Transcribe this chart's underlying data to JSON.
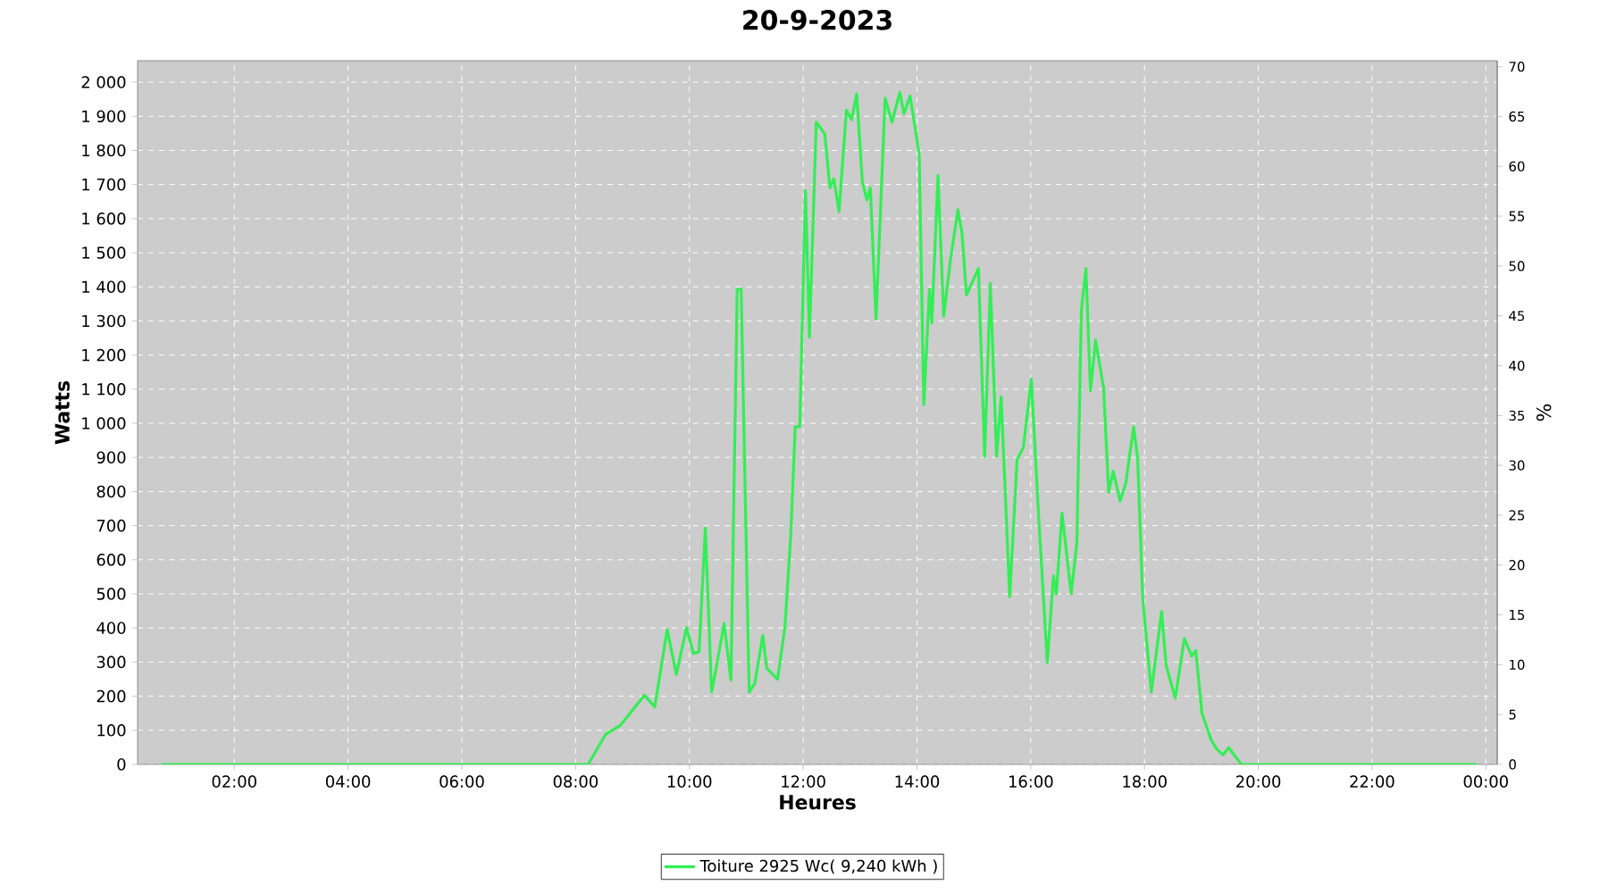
{
  "chart_data": {
    "type": "line",
    "title": "20-9-2023",
    "xlabel": "Heures",
    "ylabel": "Watts",
    "y2label": "%",
    "xlim": [
      0.3,
      24.2
    ],
    "xticks": [
      {
        "value": 2,
        "label": "02:00"
      },
      {
        "value": 4,
        "label": "04:00"
      },
      {
        "value": 6,
        "label": "06:00"
      },
      {
        "value": 8,
        "label": "08:00"
      },
      {
        "value": 10,
        "label": "10:00"
      },
      {
        "value": 12,
        "label": "12:00"
      },
      {
        "value": 14,
        "label": "14:00"
      },
      {
        "value": 16,
        "label": "16:00"
      },
      {
        "value": 18,
        "label": "18:00"
      },
      {
        "value": 20,
        "label": "20:00"
      },
      {
        "value": 22,
        "label": "22:00"
      },
      {
        "value": 24,
        "label": "00:00"
      }
    ],
    "ylim": [
      0,
      2063
    ],
    "yticks": [
      0,
      100,
      200,
      300,
      400,
      500,
      600,
      700,
      800,
      900,
      {
        "value": 1000,
        "label": "1 000"
      },
      {
        "value": 1100,
        "label": "1 100"
      },
      {
        "value": 1200,
        "label": "1 200"
      },
      {
        "value": 1300,
        "label": "1 300"
      },
      {
        "value": 1400,
        "label": "1 400"
      },
      {
        "value": 1500,
        "label": "1 500"
      },
      {
        "value": 1600,
        "label": "1 600"
      },
      {
        "value": 1700,
        "label": "1 700"
      },
      {
        "value": 1800,
        "label": "1 800"
      },
      {
        "value": 1900,
        "label": "1 900"
      },
      {
        "value": 2000,
        "label": "2 000"
      }
    ],
    "y2lim": [
      0,
      70.6
    ],
    "y2ticks": [
      0,
      5,
      10,
      15,
      20,
      25,
      30,
      35,
      40,
      45,
      50,
      55,
      60,
      65,
      70
    ],
    "grid": true,
    "legend": "bottom",
    "x": [
      0.72,
      2,
      4,
      6,
      8,
      8.22,
      8.53,
      8.79,
      9.21,
      9.39,
      9.61,
      9.77,
      9.95,
      10.07,
      10.17,
      10.28,
      10.39,
      10.47,
      10.61,
      10.73,
      10.84,
      10.91,
      11.05,
      11.15,
      11.29,
      11.36,
      11.55,
      11.68,
      11.78,
      11.86,
      11.94,
      12.04,
      12.11,
      12.23,
      12.38,
      12.47,
      12.54,
      12.63,
      12.76,
      12.85,
      12.94,
      13.04,
      13.12,
      13.18,
      13.28,
      13.44,
      13.56,
      13.7,
      13.77,
      13.88,
      14.04,
      14.12,
      14.22,
      14.26,
      14.37,
      14.47,
      14.59,
      14.72,
      14.79,
      14.87,
      15.08,
      15.19,
      15.29,
      15.4,
      15.48,
      15.63,
      15.76,
      15.87,
      16.01,
      16.13,
      16.29,
      16.4,
      16.45,
      16.55,
      16.71,
      16.81,
      16.89,
      16.97,
      17.05,
      17.14,
      17.28,
      17.37,
      17.45,
      17.57,
      17.67,
      17.81,
      17.88,
      17.97,
      18.12,
      18.3,
      18.38,
      18.54,
      18.7,
      18.83,
      18.9,
      19.01,
      19.17,
      19.27,
      19.38,
      19.48,
      19.7,
      22,
      23.84
    ],
    "series": [
      {
        "name": "Toiture 2925 Wc( 9,240 kWh )",
        "color": "#33ee55",
        "values": [
          0,
          0,
          0,
          0,
          0,
          0,
          89,
          115,
          203,
          168,
          395,
          264,
          401,
          325,
          330,
          693,
          212,
          282,
          413,
          247,
          1393,
          1393,
          212,
          238,
          378,
          282,
          250,
          404,
          667,
          990,
          990,
          1682,
          1253,
          1883,
          1848,
          1690,
          1717,
          1620,
          1918,
          1890,
          1965,
          1708,
          1655,
          1690,
          1305,
          1953,
          1883,
          1970,
          1908,
          1960,
          1787,
          1055,
          1393,
          1295,
          1726,
          1314,
          1481,
          1626,
          1559,
          1376,
          1454,
          903,
          1410,
          903,
          1078,
          492,
          894,
          929,
          1130,
          754,
          299,
          553,
          500,
          737,
          500,
          649,
          1332,
          1454,
          1095,
          1244,
          1104,
          798,
          859,
          772,
          824,
          990,
          894,
          483,
          212,
          448,
          290,
          194,
          369,
          317,
          334,
          150,
          72,
          45,
          28,
          49,
          0,
          0,
          0
        ]
      }
    ]
  }
}
